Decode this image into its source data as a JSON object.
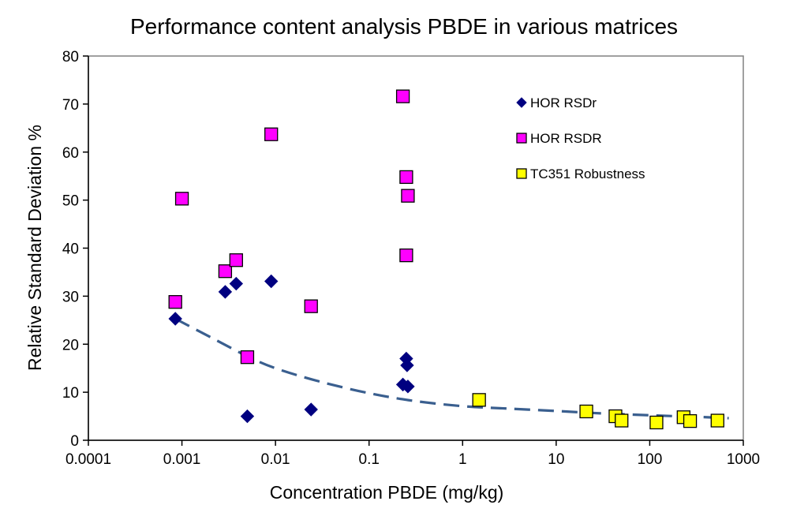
{
  "chart_data": {
    "type": "scatter",
    "title": "Performance content analysis PBDE in various matrices",
    "xlabel": "Concentration  PBDE (mg/kg)",
    "ylabel": "Relative Standard Deviation %",
    "x_scale": "log",
    "xlim": [
      0.0001,
      1000
    ],
    "ylim": [
      0,
      80
    ],
    "x_ticks": [
      0.0001,
      0.001,
      0.01,
      0.1,
      1,
      10,
      100,
      1000
    ],
    "x_tick_labels": [
      "0.0001",
      "0.001",
      "0.01",
      "0.1",
      "1",
      "10",
      "100",
      "1000"
    ],
    "y_ticks": [
      0,
      10,
      20,
      30,
      40,
      50,
      60,
      70,
      80
    ],
    "y_tick_labels": [
      "0",
      "10",
      "20",
      "30",
      "40",
      "50",
      "60",
      "70",
      "80"
    ],
    "grid": false,
    "legend_position": "top-right",
    "series": [
      {
        "name": "HOR RSDr",
        "marker": "diamond",
        "color": "#000080",
        "points": [
          [
            0.00085,
            25.3
          ],
          [
            0.0029,
            30.9
          ],
          [
            0.0038,
            32.6
          ],
          [
            0.005,
            5.0
          ],
          [
            0.009,
            33.1
          ],
          [
            0.024,
            6.4
          ],
          [
            0.23,
            11.6
          ],
          [
            0.26,
            11.2
          ],
          [
            0.255,
            15.6
          ],
          [
            0.25,
            17.0
          ]
        ]
      },
      {
        "name": "HOR RSDR",
        "marker": "square",
        "color": "#ff00ff",
        "points": [
          [
            0.00085,
            28.8
          ],
          [
            0.001,
            50.3
          ],
          [
            0.0029,
            35.2
          ],
          [
            0.0038,
            37.5
          ],
          [
            0.005,
            17.3
          ],
          [
            0.009,
            63.7
          ],
          [
            0.024,
            27.9
          ],
          [
            0.23,
            71.6
          ],
          [
            0.25,
            54.8
          ],
          [
            0.26,
            50.9
          ],
          [
            0.25,
            38.5
          ]
        ]
      },
      {
        "name": "TC351 Robustness",
        "marker": "square",
        "color": "#ffff00",
        "points": [
          [
            1.5,
            8.4
          ],
          [
            21,
            6.0
          ],
          [
            43,
            5.0
          ],
          [
            50,
            4.1
          ],
          [
            118,
            3.7
          ],
          [
            230,
            4.8
          ],
          [
            270,
            4.0
          ],
          [
            530,
            4.1
          ]
        ]
      }
    ],
    "trendline": {
      "style": "dashed",
      "color": "#3a5f8f",
      "points": [
        [
          0.00085,
          25.3
        ],
        [
          0.002,
          21.5
        ],
        [
          0.005,
          17.5
        ],
        [
          0.01,
          15.0
        ],
        [
          0.03,
          12.2
        ],
        [
          0.1,
          9.8
        ],
        [
          0.3,
          8.2
        ],
        [
          1,
          7.1
        ],
        [
          3,
          6.6
        ],
        [
          10,
          6.1
        ],
        [
          30,
          5.6
        ],
        [
          100,
          5.2
        ],
        [
          300,
          4.9
        ],
        [
          700,
          4.6
        ]
      ]
    }
  }
}
